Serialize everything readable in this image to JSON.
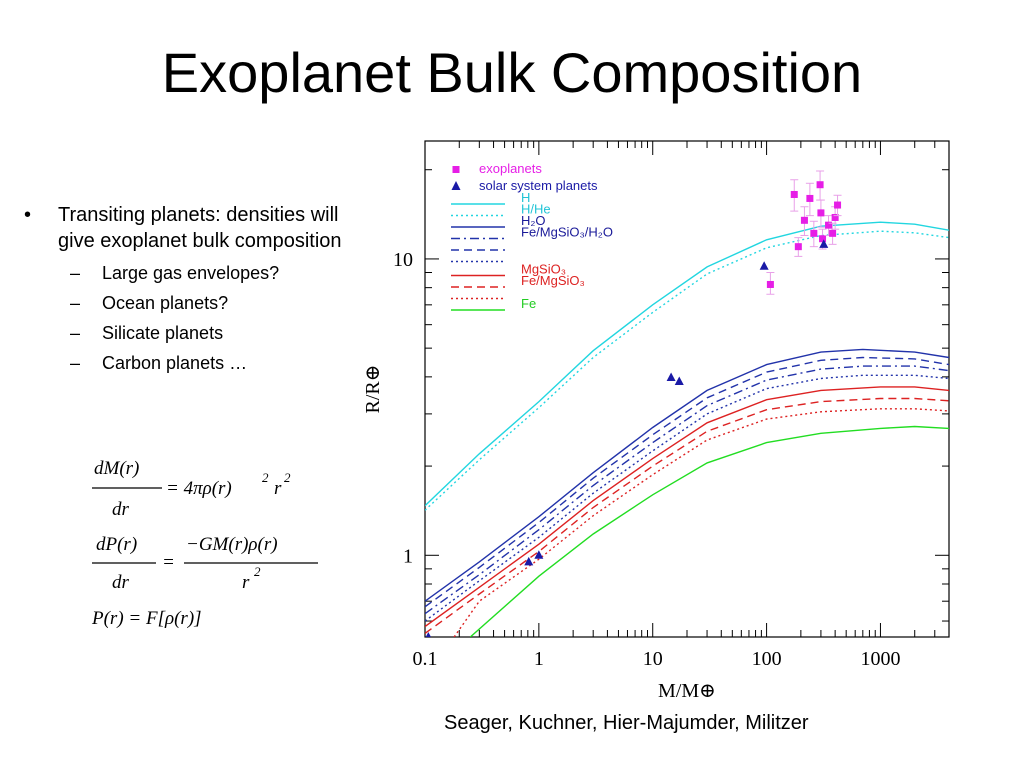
{
  "slide": {
    "title": "Exoplanet Bulk Composition",
    "bullets": [
      {
        "text": "Transiting planets: densities will give exoplanet bulk composition",
        "sub": [
          "Large gas envelopes?",
          "Ocean planets?",
          "Silicate planets",
          "Carbon planets …"
        ]
      }
    ],
    "equations": {
      "eq1_num": "dM(r)",
      "eq1_den": "dr",
      "eq1_rhs": "= 4πρ(r)",
      "eq1_exp1": "2",
      "eq1_r": "r",
      "eq1_exp2": "2",
      "eq2_num": "dP(r)",
      "eq2_den": "dr",
      "eq2_eq": "=",
      "eq2_rnum": "−GM(r)ρ(r)",
      "eq2_rden": "r",
      "eq2_rden_exp": "2",
      "eq3": "P(r) = F[ρ(r)]"
    },
    "citation": "Seager, Kuchner, Hier-Majumder, Militzer"
  },
  "chart_data": {
    "type": "line",
    "xlabel": "M/M⊕",
    "ylabel": "R/R⊕",
    "xscale": "log",
    "yscale": "log",
    "xlim": [
      0.1,
      4000
    ],
    "ylim": [
      0.53,
      25
    ],
    "xticks": [
      {
        "value": 0.1,
        "label": "0.1"
      },
      {
        "value": 1,
        "label": "1"
      },
      {
        "value": 10,
        "label": "10"
      },
      {
        "value": 100,
        "label": "100"
      },
      {
        "value": 1000,
        "label": "1000"
      }
    ],
    "yticks": [
      {
        "value": 1,
        "label": "1"
      },
      {
        "value": 10,
        "label": "10"
      }
    ],
    "legend_position": "top-left",
    "legend": [
      {
        "label": "exoplanets",
        "marker": "square",
        "color": "#e61ee6"
      },
      {
        "label": "solar system planets",
        "marker": "triangle",
        "color": "#1a1aa6"
      },
      {
        "label": "H",
        "color": "#22d6e0",
        "dash": "solid",
        "text_color": "#22c4d6"
      },
      {
        "label": "H/He",
        "color": "#22d6e0",
        "dash": "dotted",
        "text_color": "#22c4d6"
      },
      {
        "label": "H₂O",
        "color": "#2233aa",
        "dash": "solid",
        "text_color": "#1a1a99"
      },
      {
        "label": "Fe/MgSiO₃/H₂O",
        "color": "#2233aa",
        "dash": "dashdot",
        "text_color": "#1a1a99"
      },
      {
        "label": "",
        "color": "#2233aa",
        "dash": "dashed"
      },
      {
        "label": "",
        "color": "#2233aa",
        "dash": "dotted"
      },
      {
        "label": "MgSiO₃",
        "color": "#dd2222",
        "dash": "solid",
        "text_color": "#dd2222"
      },
      {
        "label": "Fe/MgSiO₃",
        "color": "#dd2222",
        "dash": "dashed",
        "text_color": "#dd2222"
      },
      {
        "label": "",
        "color": "#dd2222",
        "dash": "dotted"
      },
      {
        "label": "Fe",
        "color": "#22dd22",
        "dash": "solid",
        "text_color": "#22cc22"
      }
    ],
    "series": [
      {
        "color": "#22d6e0",
        "dash": "solid",
        "points": [
          [
            0.1,
            1.47
          ],
          [
            0.3,
            2.2
          ],
          [
            1,
            3.3
          ],
          [
            3,
            4.9
          ],
          [
            10,
            7.0
          ],
          [
            30,
            9.4
          ],
          [
            100,
            11.6
          ],
          [
            300,
            12.9
          ],
          [
            1000,
            13.3
          ],
          [
            2000,
            13.1
          ],
          [
            4000,
            12.5
          ]
        ]
      },
      {
        "color": "#22d6e0",
        "dash": "dotted",
        "points": [
          [
            0.1,
            1.42
          ],
          [
            0.3,
            2.1
          ],
          [
            1,
            3.15
          ],
          [
            3,
            4.65
          ],
          [
            10,
            6.6
          ],
          [
            30,
            8.9
          ],
          [
            100,
            10.9
          ],
          [
            300,
            12.0
          ],
          [
            1000,
            12.4
          ],
          [
            2000,
            12.25
          ],
          [
            4000,
            11.8
          ]
        ]
      },
      {
        "color": "#2233aa",
        "dash": "solid",
        "points": [
          [
            0.1,
            0.7
          ],
          [
            0.3,
            0.95
          ],
          [
            1,
            1.35
          ],
          [
            3,
            1.9
          ],
          [
            10,
            2.7
          ],
          [
            30,
            3.6
          ],
          [
            100,
            4.4
          ],
          [
            300,
            4.85
          ],
          [
            700,
            4.95
          ],
          [
            2000,
            4.85
          ],
          [
            4000,
            4.65
          ]
        ]
      },
      {
        "color": "#2233aa",
        "dash": "dashed",
        "points": [
          [
            0.1,
            0.67
          ],
          [
            0.3,
            0.91
          ],
          [
            1,
            1.29
          ],
          [
            3,
            1.82
          ],
          [
            10,
            2.55
          ],
          [
            30,
            3.4
          ],
          [
            100,
            4.15
          ],
          [
            300,
            4.55
          ],
          [
            700,
            4.65
          ],
          [
            2000,
            4.6
          ],
          [
            4000,
            4.4
          ]
        ]
      },
      {
        "color": "#2233aa",
        "dash": "dashdot",
        "points": [
          [
            0.1,
            0.635
          ],
          [
            0.3,
            0.86
          ],
          [
            1,
            1.22
          ],
          [
            3,
            1.72
          ],
          [
            10,
            2.4
          ],
          [
            30,
            3.2
          ],
          [
            100,
            3.9
          ],
          [
            300,
            4.25
          ],
          [
            700,
            4.35
          ],
          [
            2000,
            4.35
          ],
          [
            4000,
            4.2
          ]
        ]
      },
      {
        "color": "#2233aa",
        "dash": "dotted",
        "points": [
          [
            0.1,
            0.6
          ],
          [
            0.3,
            0.82
          ],
          [
            1,
            1.15
          ],
          [
            3,
            1.62
          ],
          [
            10,
            2.25
          ],
          [
            30,
            3.0
          ],
          [
            100,
            3.65
          ],
          [
            300,
            3.95
          ],
          [
            700,
            4.05
          ],
          [
            2000,
            4.05
          ],
          [
            4000,
            3.95
          ]
        ]
      },
      {
        "color": "#dd2222",
        "dash": "solid",
        "points": [
          [
            0.1,
            0.575
          ],
          [
            0.3,
            0.78
          ],
          [
            1,
            1.09
          ],
          [
            3,
            1.53
          ],
          [
            10,
            2.12
          ],
          [
            30,
            2.8
          ],
          [
            100,
            3.35
          ],
          [
            300,
            3.6
          ],
          [
            1000,
            3.7
          ],
          [
            2000,
            3.7
          ],
          [
            4000,
            3.6
          ]
        ]
      },
      {
        "color": "#dd2222",
        "dash": "dashed",
        "points": [
          [
            0.1,
            0.545
          ],
          [
            0.3,
            0.74
          ],
          [
            1,
            1.03
          ],
          [
            3,
            1.45
          ],
          [
            10,
            2.0
          ],
          [
            30,
            2.62
          ],
          [
            100,
            3.1
          ],
          [
            300,
            3.3
          ],
          [
            1000,
            3.38
          ],
          [
            2000,
            3.38
          ],
          [
            4000,
            3.32
          ]
        ]
      },
      {
        "color": "#dd2222",
        "dash": "dotted",
        "points": [
          [
            0.18,
            0.53
          ],
          [
            0.3,
            0.7
          ],
          [
            1,
            0.97
          ],
          [
            3,
            1.36
          ],
          [
            10,
            1.87
          ],
          [
            30,
            2.45
          ],
          [
            100,
            2.88
          ],
          [
            300,
            3.05
          ],
          [
            1000,
            3.12
          ],
          [
            2000,
            3.12
          ],
          [
            4000,
            3.07
          ]
        ]
      },
      {
        "color": "#22dd22",
        "dash": "solid",
        "points": [
          [
            0.25,
            0.53
          ],
          [
            1,
            0.85
          ],
          [
            3,
            1.18
          ],
          [
            10,
            1.6
          ],
          [
            30,
            2.05
          ],
          [
            100,
            2.4
          ],
          [
            300,
            2.58
          ],
          [
            1000,
            2.68
          ],
          [
            2000,
            2.72
          ],
          [
            4000,
            2.68
          ]
        ]
      }
    ],
    "exoplanets": [
      {
        "x": 108,
        "y": 8.2,
        "yerr": [
          7.6,
          9.0
        ]
      },
      {
        "x": 175,
        "y": 16.5,
        "yerr": [
          14.5,
          18.5
        ]
      },
      {
        "x": 190,
        "y": 11.0,
        "yerr": [
          10.2,
          11.8
        ]
      },
      {
        "x": 215,
        "y": 13.5,
        "yerr": [
          12.0,
          15.0
        ]
      },
      {
        "x": 240,
        "y": 16.0,
        "yerr": [
          14.0,
          18.0
        ]
      },
      {
        "x": 260,
        "y": 12.2,
        "yerr": [
          11.0,
          13.4
        ]
      },
      {
        "x": 295,
        "y": 17.8,
        "yerr": [
          15.8,
          19.8
        ]
      },
      {
        "x": 300,
        "y": 14.3,
        "yerr": [
          12.8,
          15.8
        ]
      },
      {
        "x": 310,
        "y": 11.7,
        "yerr": [
          10.8,
          12.6
        ]
      },
      {
        "x": 350,
        "y": 13.0,
        "yerr": [
          12.0,
          14.0
        ]
      },
      {
        "x": 380,
        "y": 12.2,
        "yerr": [
          11.2,
          13.2
        ]
      },
      {
        "x": 400,
        "y": 13.8,
        "yerr": [
          12.6,
          15.0
        ]
      },
      {
        "x": 420,
        "y": 15.2,
        "yerr": [
          14.0,
          16.4
        ]
      }
    ],
    "solar_system": [
      {
        "x": 0.107,
        "y": 0.53
      },
      {
        "x": 0.815,
        "y": 0.95
      },
      {
        "x": 1.0,
        "y": 1.0
      },
      {
        "x": 14.5,
        "y": 3.98
      },
      {
        "x": 17.1,
        "y": 3.86
      },
      {
        "x": 95.2,
        "y": 9.45
      },
      {
        "x": 317.8,
        "y": 11.2
      }
    ]
  }
}
